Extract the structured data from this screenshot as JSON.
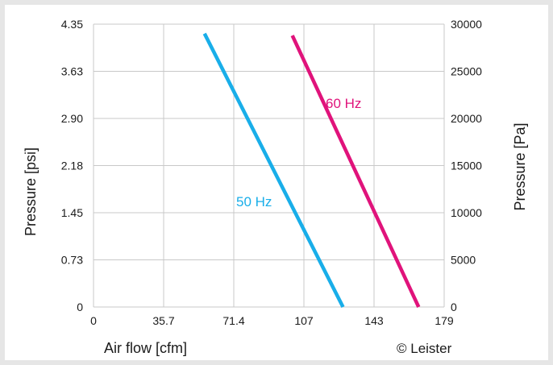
{
  "chart_data": {
    "type": "line",
    "xlabel": "Air flow [cfm]",
    "ylabel_left": "Pressure [psi]",
    "ylabel_right": "Pressure [Pa]",
    "x_ticks": [
      "0",
      "35.7",
      "71.4",
      "107",
      "143",
      "179"
    ],
    "y_left_ticks": [
      "0",
      "0.73",
      "1.45",
      "2.18",
      "2.90",
      "3.63",
      "4.35"
    ],
    "y_right_ticks": [
      "0",
      "5000",
      "10000",
      "15000",
      "20000",
      "25000",
      "30000"
    ],
    "xlim": [
      0,
      178.5
    ],
    "ylim_right": [
      0,
      30000
    ],
    "grid": true,
    "series": [
      {
        "name": "50 Hz",
        "color": "#19aee9",
        "points": [
          [
            56.5,
            29000
          ],
          [
            127,
            0
          ]
        ]
      },
      {
        "name": "60 Hz",
        "color": "#e0137b",
        "points": [
          [
            101.2,
            28800
          ],
          [
            165.5,
            0
          ]
        ]
      }
    ],
    "credit": "© Leister"
  }
}
